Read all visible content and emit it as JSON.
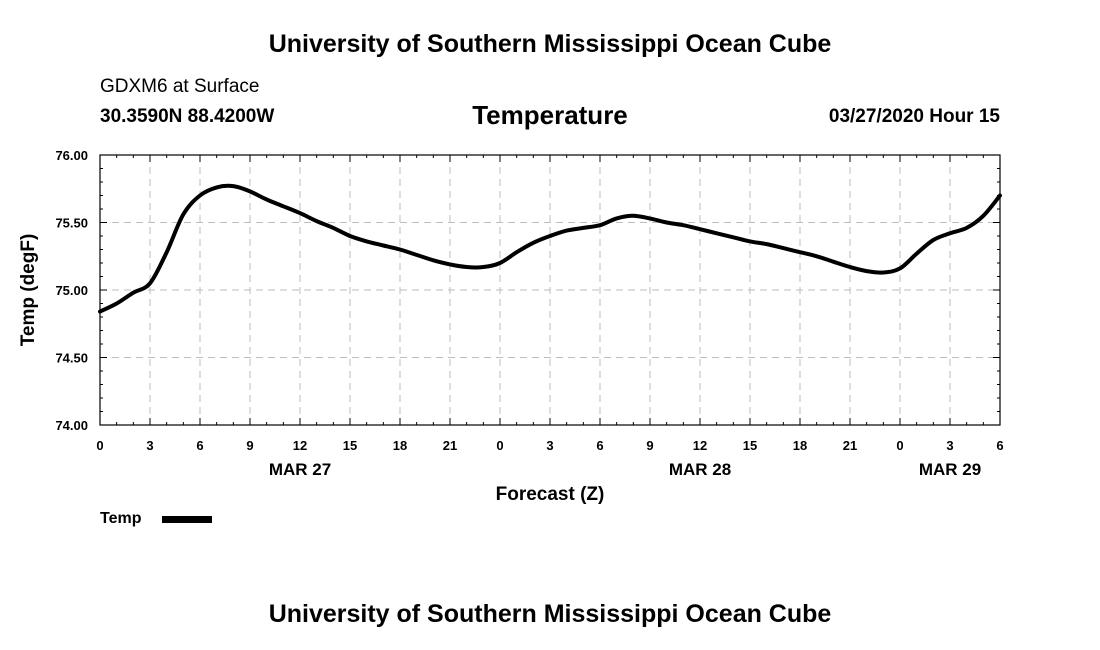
{
  "header": {
    "top_title": "University of Southern Mississippi Ocean Cube",
    "station": "GDXM6 at Surface",
    "coords": "30.3590N 88.4200W",
    "datetime": "03/27/2020 Hour 15",
    "bottom_title": "University of Southern Mississippi Ocean Cube"
  },
  "chart_data": {
    "type": "line",
    "title": "Temperature",
    "xlabel": "Forecast (Z)",
    "ylabel": "Temp (degF)",
    "ylim": [
      74.0,
      76.0
    ],
    "yticks": [
      "74.00",
      "74.50",
      "75.00",
      "75.50",
      "76.00"
    ],
    "xticks": [
      "0",
      "3",
      "6",
      "9",
      "12",
      "15",
      "18",
      "21",
      "0",
      "3",
      "6",
      "9",
      "12",
      "15",
      "18",
      "21",
      "0",
      "3",
      "6"
    ],
    "date_labels": [
      {
        "label": "MAR 27",
        "tick_index": 4
      },
      {
        "label": "MAR 28",
        "tick_index": 12
      },
      {
        "label": "MAR 29",
        "tick_index": 17
      }
    ],
    "grid": true,
    "legend_position": "bottom-left",
    "series": [
      {
        "name": "Temp",
        "color": "#000000",
        "x": [
          "03-27 00",
          "03-27 01",
          "03-27 02",
          "03-27 03",
          "03-27 04",
          "03-27 05",
          "03-27 06",
          "03-27 07",
          "03-27 08",
          "03-27 09",
          "03-27 10",
          "03-27 11",
          "03-27 12",
          "03-27 13",
          "03-27 14",
          "03-27 15",
          "03-27 16",
          "03-27 17",
          "03-27 18",
          "03-27 19",
          "03-27 20",
          "03-27 21",
          "03-27 22",
          "03-27 23",
          "03-28 00",
          "03-28 01",
          "03-28 02",
          "03-28 03",
          "03-28 04",
          "03-28 05",
          "03-28 06",
          "03-28 07",
          "03-28 08",
          "03-28 09",
          "03-28 10",
          "03-28 11",
          "03-28 12",
          "03-28 13",
          "03-28 14",
          "03-28 15",
          "03-28 16",
          "03-28 17",
          "03-28 18",
          "03-28 19",
          "03-28 20",
          "03-28 21",
          "03-28 22",
          "03-28 23",
          "03-29 00",
          "03-29 01",
          "03-29 02",
          "03-29 03",
          "03-29 04",
          "03-29 05",
          "03-29 06"
        ],
        "values": [
          74.84,
          74.9,
          74.98,
          75.05,
          75.28,
          75.56,
          75.7,
          75.76,
          75.77,
          75.73,
          75.67,
          75.62,
          75.57,
          75.51,
          75.46,
          75.4,
          75.36,
          75.33,
          75.3,
          75.26,
          75.22,
          75.19,
          75.17,
          75.17,
          75.2,
          75.28,
          75.35,
          75.4,
          75.44,
          75.46,
          75.48,
          75.53,
          75.55,
          75.53,
          75.5,
          75.48,
          75.45,
          75.42,
          75.39,
          75.36,
          75.34,
          75.31,
          75.28,
          75.25,
          75.21,
          75.17,
          75.14,
          75.13,
          75.16,
          75.27,
          75.37,
          75.42,
          75.46,
          75.55,
          75.7
        ]
      }
    ]
  }
}
